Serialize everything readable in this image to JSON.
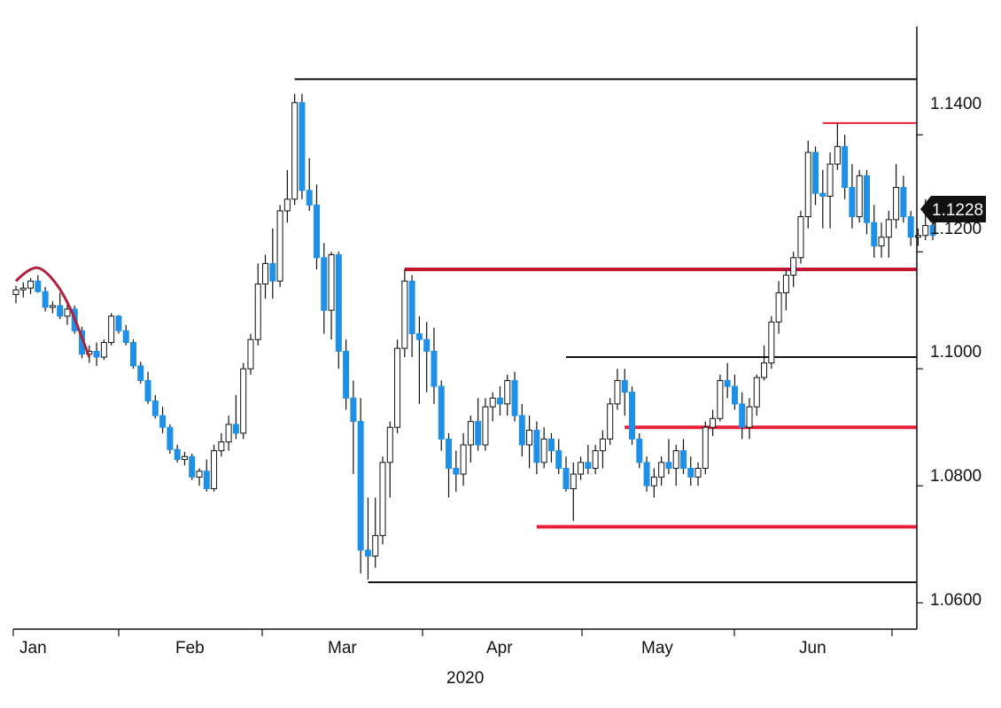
{
  "chart_data": {
    "type": "candlestick",
    "x_tick_labels": [
      "Jan",
      "Feb",
      "Mar",
      "Apr",
      "May",
      "Jun"
    ],
    "x_year_label": "2020",
    "y_tick_labels": [
      "1.1400",
      "1.1200",
      "1.1000",
      "1.0800",
      "1.0600"
    ],
    "y_ticks": [
      1.14,
      1.12,
      1.1,
      1.08,
      1.06
    ],
    "ylim": [
      1.0555,
      1.1585
    ],
    "last_price_label": "1.1228",
    "last_price": 1.1228,
    "colors": {
      "up": "#ffffff",
      "down": "#1e90e8",
      "wick": "#111111",
      "red_line": "#e8203c",
      "dark_red": "#c41230",
      "black_line": "#111111",
      "curve": "#b0203a",
      "tag_bg": "#111111"
    },
    "candles": [
      [
        1.1127,
        1.1142,
        1.1112,
        1.1135
      ],
      [
        1.1135,
        1.1148,
        1.1122,
        1.1138
      ],
      [
        1.1138,
        1.1155,
        1.1128,
        1.115
      ],
      [
        1.115,
        1.116,
        1.113,
        1.1132
      ],
      [
        1.1132,
        1.114,
        1.1098,
        1.1105
      ],
      [
        1.1105,
        1.1115,
        1.1095,
        1.1108
      ],
      [
        1.1108,
        1.113,
        1.1085,
        1.109
      ],
      [
        1.109,
        1.111,
        1.1075,
        1.1102
      ],
      [
        1.1102,
        1.1108,
        1.106,
        1.1065
      ],
      [
        1.1065,
        1.1072,
        1.1018,
        1.1025
      ],
      [
        1.1025,
        1.104,
        1.101,
        1.103
      ],
      [
        1.103,
        1.1045,
        1.1005,
        1.102
      ],
      [
        1.102,
        1.105,
        1.1015,
        1.1045
      ],
      [
        1.1045,
        1.1095,
        1.104,
        1.109
      ],
      [
        1.109,
        1.1092,
        1.106,
        1.1065
      ],
      [
        1.1065,
        1.1075,
        1.104,
        1.1045
      ],
      [
        1.1045,
        1.105,
        1.1,
        1.1005
      ],
      [
        1.1005,
        1.1012,
        1.0975,
        1.098
      ],
      [
        1.098,
        1.0995,
        1.094,
        1.0945
      ],
      [
        1.0945,
        1.0955,
        1.0915,
        1.092
      ],
      [
        1.092,
        1.0935,
        1.089,
        1.09
      ],
      [
        1.09,
        1.0905,
        1.0855,
        1.0862
      ],
      [
        1.0862,
        1.087,
        1.084,
        1.0845
      ],
      [
        1.0845,
        1.0858,
        1.0835,
        1.085
      ],
      [
        1.085,
        1.0855,
        1.081,
        1.0815
      ],
      [
        1.0815,
        1.083,
        1.08,
        1.0825
      ],
      [
        1.0825,
        1.0845,
        1.079,
        1.0795
      ],
      [
        1.0795,
        1.087,
        1.079,
        1.086
      ],
      [
        1.086,
        1.089,
        1.085,
        1.0875
      ],
      [
        1.0875,
        1.092,
        1.086,
        1.0905
      ],
      [
        1.0905,
        1.0955,
        1.088,
        1.089
      ],
      [
        1.089,
        1.101,
        1.088,
        1.1
      ],
      [
        1.1,
        1.106,
        1.099,
        1.105
      ],
      [
        1.105,
        1.118,
        1.104,
        1.1145
      ],
      [
        1.1145,
        1.1195,
        1.112,
        1.118
      ],
      [
        1.118,
        1.124,
        1.112,
        1.115
      ],
      [
        1.115,
        1.128,
        1.114,
        1.127
      ],
      [
        1.127,
        1.134,
        1.125,
        1.129
      ],
      [
        1.129,
        1.147,
        1.128,
        1.1455
      ],
      [
        1.1455,
        1.147,
        1.129,
        1.1305
      ],
      [
        1.1305,
        1.136,
        1.127,
        1.128
      ],
      [
        1.128,
        1.1315,
        1.117,
        1.119
      ],
      [
        1.119,
        1.1215,
        1.106,
        1.11
      ],
      [
        1.11,
        1.12,
        1.105,
        1.1195
      ],
      [
        1.1195,
        1.12,
        1.1,
        1.103
      ],
      [
        1.103,
        1.105,
        1.093,
        1.095
      ],
      [
        1.095,
        1.098,
        1.082,
        1.091
      ],
      [
        1.091,
        1.095,
        1.065,
        1.069
      ],
      [
        1.069,
        1.078,
        1.064,
        1.068
      ],
      [
        1.068,
        1.078,
        1.066,
        1.0715
      ],
      [
        1.0715,
        1.085,
        1.07,
        1.084
      ],
      [
        1.084,
        1.091,
        1.078,
        1.09
      ],
      [
        1.09,
        1.105,
        1.089,
        1.1035
      ],
      [
        1.1035,
        1.117,
        1.102,
        1.115
      ],
      [
        1.115,
        1.116,
        1.102,
        1.106
      ],
      [
        1.106,
        1.109,
        1.094,
        1.105
      ],
      [
        1.105,
        1.108,
        1.096,
        1.103
      ],
      [
        1.103,
        1.107,
        1.094,
        1.097
      ],
      [
        1.097,
        1.098,
        1.086,
        1.088
      ],
      [
        1.088,
        1.089,
        1.078,
        1.083
      ],
      [
        1.083,
        1.086,
        1.079,
        1.082
      ],
      [
        1.082,
        1.089,
        1.08,
        1.087
      ],
      [
        1.087,
        1.092,
        1.084,
        1.091
      ],
      [
        1.091,
        1.095,
        1.086,
        1.087
      ],
      [
        1.087,
        1.095,
        1.086,
        1.0935
      ],
      [
        1.0935,
        1.096,
        1.091,
        1.095
      ],
      [
        1.095,
        1.097,
        1.092,
        1.094
      ],
      [
        1.094,
        1.099,
        1.092,
        1.098
      ],
      [
        1.098,
        1.0995,
        1.091,
        1.092
      ],
      [
        1.092,
        1.094,
        1.085,
        1.087
      ],
      [
        1.087,
        1.092,
        1.083,
        1.0895
      ],
      [
        1.0895,
        1.091,
        1.082,
        1.084
      ],
      [
        1.084,
        1.09,
        1.083,
        1.088
      ],
      [
        1.088,
        1.089,
        1.084,
        1.086
      ],
      [
        1.086,
        1.088,
        1.082,
        1.083
      ],
      [
        1.083,
        1.085,
        1.079,
        1.0795
      ],
      [
        1.0795,
        1.084,
        1.074,
        1.082
      ],
      [
        1.082,
        1.085,
        1.081,
        1.084
      ],
      [
        1.084,
        1.087,
        1.082,
        1.083
      ],
      [
        1.083,
        1.087,
        1.082,
        1.086
      ],
      [
        1.086,
        1.0895,
        1.083,
        1.088
      ],
      [
        1.088,
        1.095,
        1.087,
        1.094
      ],
      [
        1.094,
        1.1,
        1.093,
        1.098
      ],
      [
        1.098,
        1.1,
        1.092,
        1.096
      ],
      [
        1.096,
        1.097,
        1.087,
        1.088
      ],
      [
        1.088,
        1.089,
        1.083,
        1.084
      ],
      [
        1.084,
        1.085,
        1.079,
        1.08
      ],
      [
        1.08,
        1.083,
        1.078,
        1.0815
      ],
      [
        1.0815,
        1.085,
        1.08,
        1.084
      ],
      [
        1.084,
        1.088,
        1.082,
        1.083
      ],
      [
        1.083,
        1.087,
        1.08,
        1.086
      ],
      [
        1.086,
        1.088,
        1.082,
        1.083
      ],
      [
        1.083,
        1.085,
        1.08,
        1.0815
      ],
      [
        1.0815,
        1.084,
        1.08,
        1.083
      ],
      [
        1.083,
        1.091,
        1.082,
        1.09
      ],
      [
        1.09,
        1.093,
        1.0885,
        1.0915
      ],
      [
        1.0915,
        1.099,
        1.091,
        1.098
      ],
      [
        1.098,
        1.101,
        1.095,
        1.097
      ],
      [
        1.097,
        1.099,
        1.093,
        1.094
      ],
      [
        1.094,
        1.096,
        1.088,
        1.09
      ],
      [
        1.09,
        1.095,
        1.088,
        1.0935
      ],
      [
        1.0935,
        1.099,
        1.092,
        1.0985
      ],
      [
        1.0985,
        1.104,
        1.098,
        1.101
      ],
      [
        1.101,
        1.109,
        1.1,
        1.108
      ],
      [
        1.108,
        1.115,
        1.106,
        1.113
      ],
      [
        1.113,
        1.117,
        1.11,
        1.116
      ],
      [
        1.116,
        1.12,
        1.114,
        1.119
      ],
      [
        1.119,
        1.127,
        1.118,
        1.126
      ],
      [
        1.126,
        1.139,
        1.124,
        1.137
      ],
      [
        1.137,
        1.138,
        1.128,
        1.13
      ],
      [
        1.13,
        1.134,
        1.124,
        1.1295
      ],
      [
        1.1295,
        1.137,
        1.124,
        1.135
      ],
      [
        1.135,
        1.142,
        1.134,
        1.138
      ],
      [
        1.138,
        1.14,
        1.129,
        1.131
      ],
      [
        1.131,
        1.135,
        1.124,
        1.126
      ],
      [
        1.126,
        1.134,
        1.125,
        1.133
      ],
      [
        1.133,
        1.134,
        1.123,
        1.125
      ],
      [
        1.125,
        1.128,
        1.119,
        1.121
      ],
      [
        1.121,
        1.125,
        1.119,
        1.1225
      ],
      [
        1.1225,
        1.127,
        1.119,
        1.1255
      ],
      [
        1.1255,
        1.135,
        1.124,
        1.131
      ],
      [
        1.131,
        1.133,
        1.125,
        1.126
      ],
      [
        1.126,
        1.127,
        1.121,
        1.1225
      ],
      [
        1.1225,
        1.124,
        1.121,
        1.1228
      ],
      [
        1.1228,
        1.129,
        1.122,
        1.1245
      ],
      [
        1.1245,
        1.126,
        1.122,
        1.1228
      ]
    ],
    "horizontal_lines": [
      {
        "level": 1.1495,
        "from_index": 38,
        "color": "black_line",
        "width": 2
      },
      {
        "level": 1.142,
        "from_index": 110,
        "color": "red_line",
        "width": 2
      },
      {
        "level": 1.117,
        "from_index": 53,
        "color": "dark_red",
        "width": 4
      },
      {
        "level": 1.102,
        "from_index": 75,
        "color": "black_line",
        "width": 2
      },
      {
        "level": 1.09,
        "from_index": 83,
        "color": "red_line",
        "width": 4
      },
      {
        "level": 1.073,
        "from_index": 71,
        "color": "red_line",
        "width": 4
      },
      {
        "level": 1.0635,
        "from_index": 48,
        "color": "black_line",
        "width": 2
      }
    ],
    "curve_points": [
      [
        0,
        1.115
      ],
      [
        2,
        1.1175
      ],
      [
        4,
        1.117
      ],
      [
        7,
        1.112
      ],
      [
        10,
        1.102
      ]
    ],
    "grid": false,
    "legend": "none"
  }
}
